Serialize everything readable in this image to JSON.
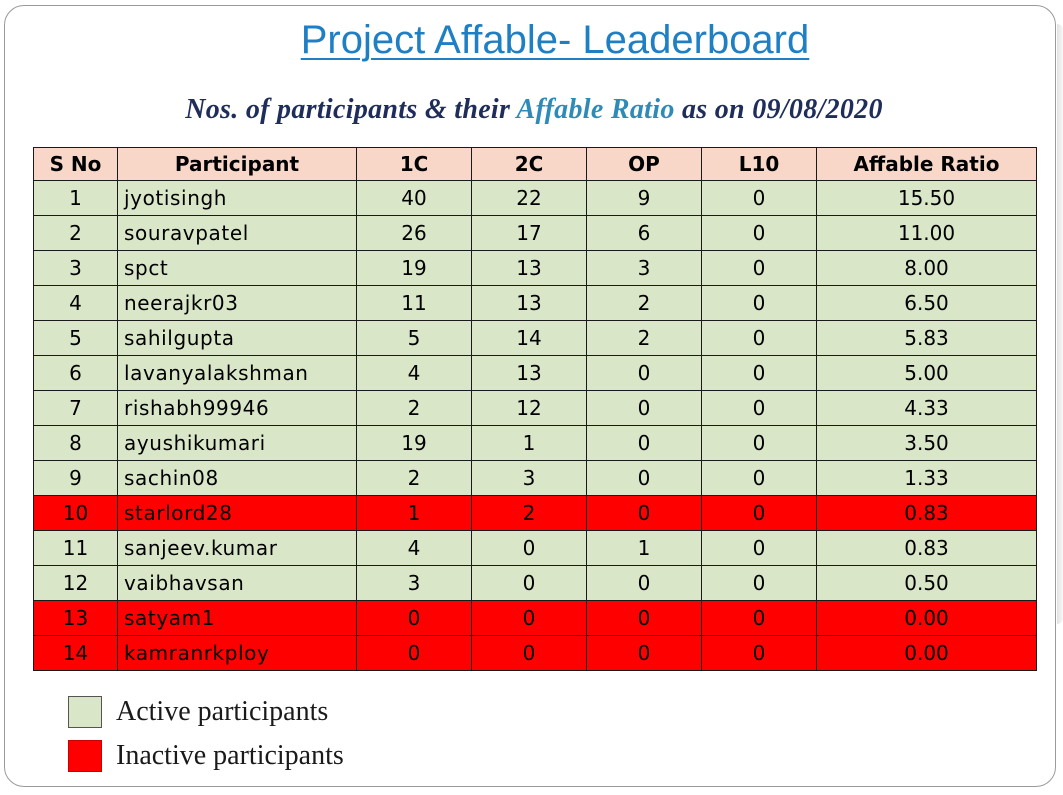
{
  "title": "Project Affable- Leaderboard",
  "subtitle": {
    "prefix": "Nos. of participants & their ",
    "highlight": "Affable Ratio",
    "suffix": " as on 09/08/2020"
  },
  "colors": {
    "title": "#1f7fc4",
    "header_bg": "#f8d7c8",
    "active_bg": "#d9e6c7",
    "inactive_bg": "#ff0000"
  },
  "table": {
    "headers": [
      "S No",
      "Participant",
      "1C",
      "2C",
      "OP",
      "L10",
      "Affable Ratio"
    ],
    "rows": [
      {
        "sno": "1",
        "participant": "jyotisingh",
        "c1": "40",
        "c2": "22",
        "op": "9",
        "l10": "0",
        "ratio": "15.50",
        "status": "active"
      },
      {
        "sno": "2",
        "participant": "souravpatel",
        "c1": "26",
        "c2": "17",
        "op": "6",
        "l10": "0",
        "ratio": "11.00",
        "status": "active"
      },
      {
        "sno": "3",
        "participant": "spct",
        "c1": "19",
        "c2": "13",
        "op": "3",
        "l10": "0",
        "ratio": "8.00",
        "status": "active"
      },
      {
        "sno": "4",
        "participant": "neerajkr03",
        "c1": "11",
        "c2": "13",
        "op": "2",
        "l10": "0",
        "ratio": "6.50",
        "status": "active"
      },
      {
        "sno": "5",
        "participant": "sahilgupta",
        "c1": "5",
        "c2": "14",
        "op": "2",
        "l10": "0",
        "ratio": "5.83",
        "status": "active"
      },
      {
        "sno": "6",
        "participant": "lavanyalakshman",
        "c1": "4",
        "c2": "13",
        "op": "0",
        "l10": "0",
        "ratio": "5.00",
        "status": "active"
      },
      {
        "sno": "7",
        "participant": "rishabh99946",
        "c1": "2",
        "c2": "12",
        "op": "0",
        "l10": "0",
        "ratio": "4.33",
        "status": "active"
      },
      {
        "sno": "8",
        "participant": "ayushikumari",
        "c1": "19",
        "c2": "1",
        "op": "0",
        "l10": "0",
        "ratio": "3.50",
        "status": "active"
      },
      {
        "sno": "9",
        "participant": "sachin08",
        "c1": "2",
        "c2": "3",
        "op": "0",
        "l10": "0",
        "ratio": "1.33",
        "status": "active"
      },
      {
        "sno": "10",
        "participant": "starlord28",
        "c1": "1",
        "c2": "2",
        "op": "0",
        "l10": "0",
        "ratio": "0.83",
        "status": "inactive"
      },
      {
        "sno": "11",
        "participant": "sanjeev.kumar",
        "c1": "4",
        "c2": "0",
        "op": "1",
        "l10": "0",
        "ratio": "0.83",
        "status": "active"
      },
      {
        "sno": "12",
        "participant": "vaibhavsan",
        "c1": "3",
        "c2": "0",
        "op": "0",
        "l10": "0",
        "ratio": "0.50",
        "status": "active"
      },
      {
        "sno": "13",
        "participant": "satyam1",
        "c1": "0",
        "c2": "0",
        "op": "0",
        "l10": "0",
        "ratio": "0.00",
        "status": "inactive"
      },
      {
        "sno": "14",
        "participant": "kamranrkploy",
        "c1": "0",
        "c2": "0",
        "op": "0",
        "l10": "0",
        "ratio": "0.00",
        "status": "inactive"
      }
    ]
  },
  "legend": {
    "active_label": "Active participants",
    "inactive_label": "Inactive participants"
  }
}
